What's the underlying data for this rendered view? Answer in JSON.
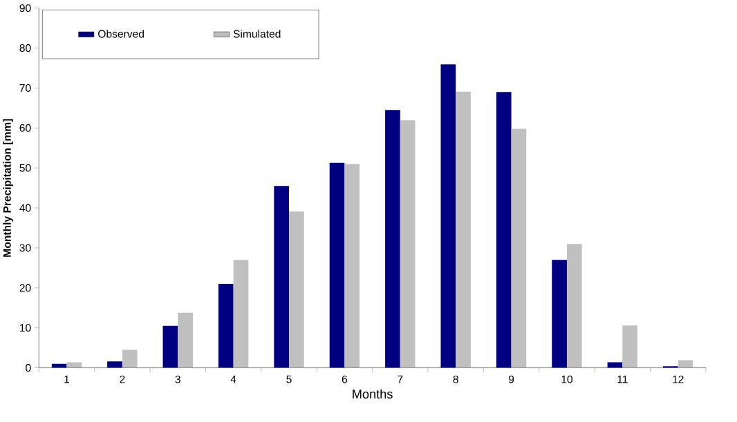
{
  "chart_data": {
    "type": "bar",
    "xlabel": "Months",
    "ylabel": "Monthly Precipitation [mm]",
    "categories": [
      "1",
      "2",
      "3",
      "4",
      "5",
      "6",
      "7",
      "8",
      "9",
      "10",
      "11",
      "12"
    ],
    "series": [
      {
        "name": "Observed",
        "color": "#000080",
        "values": [
          1.0,
          1.6,
          10.5,
          21,
          45.5,
          51.3,
          64.5,
          75.9,
          69,
          27,
          1.4,
          0.4
        ]
      },
      {
        "name": "Simulated",
        "color": "#c0c0c0",
        "values": [
          1.4,
          4.5,
          13.8,
          27,
          39.1,
          51,
          61.9,
          69.1,
          59.8,
          31,
          10.6,
          1.9
        ]
      }
    ],
    "ylim": [
      0,
      90
    ],
    "yticks": [
      0,
      10,
      20,
      30,
      40,
      50,
      60,
      70,
      80,
      90
    ],
    "legend": "top left",
    "grid": false
  }
}
